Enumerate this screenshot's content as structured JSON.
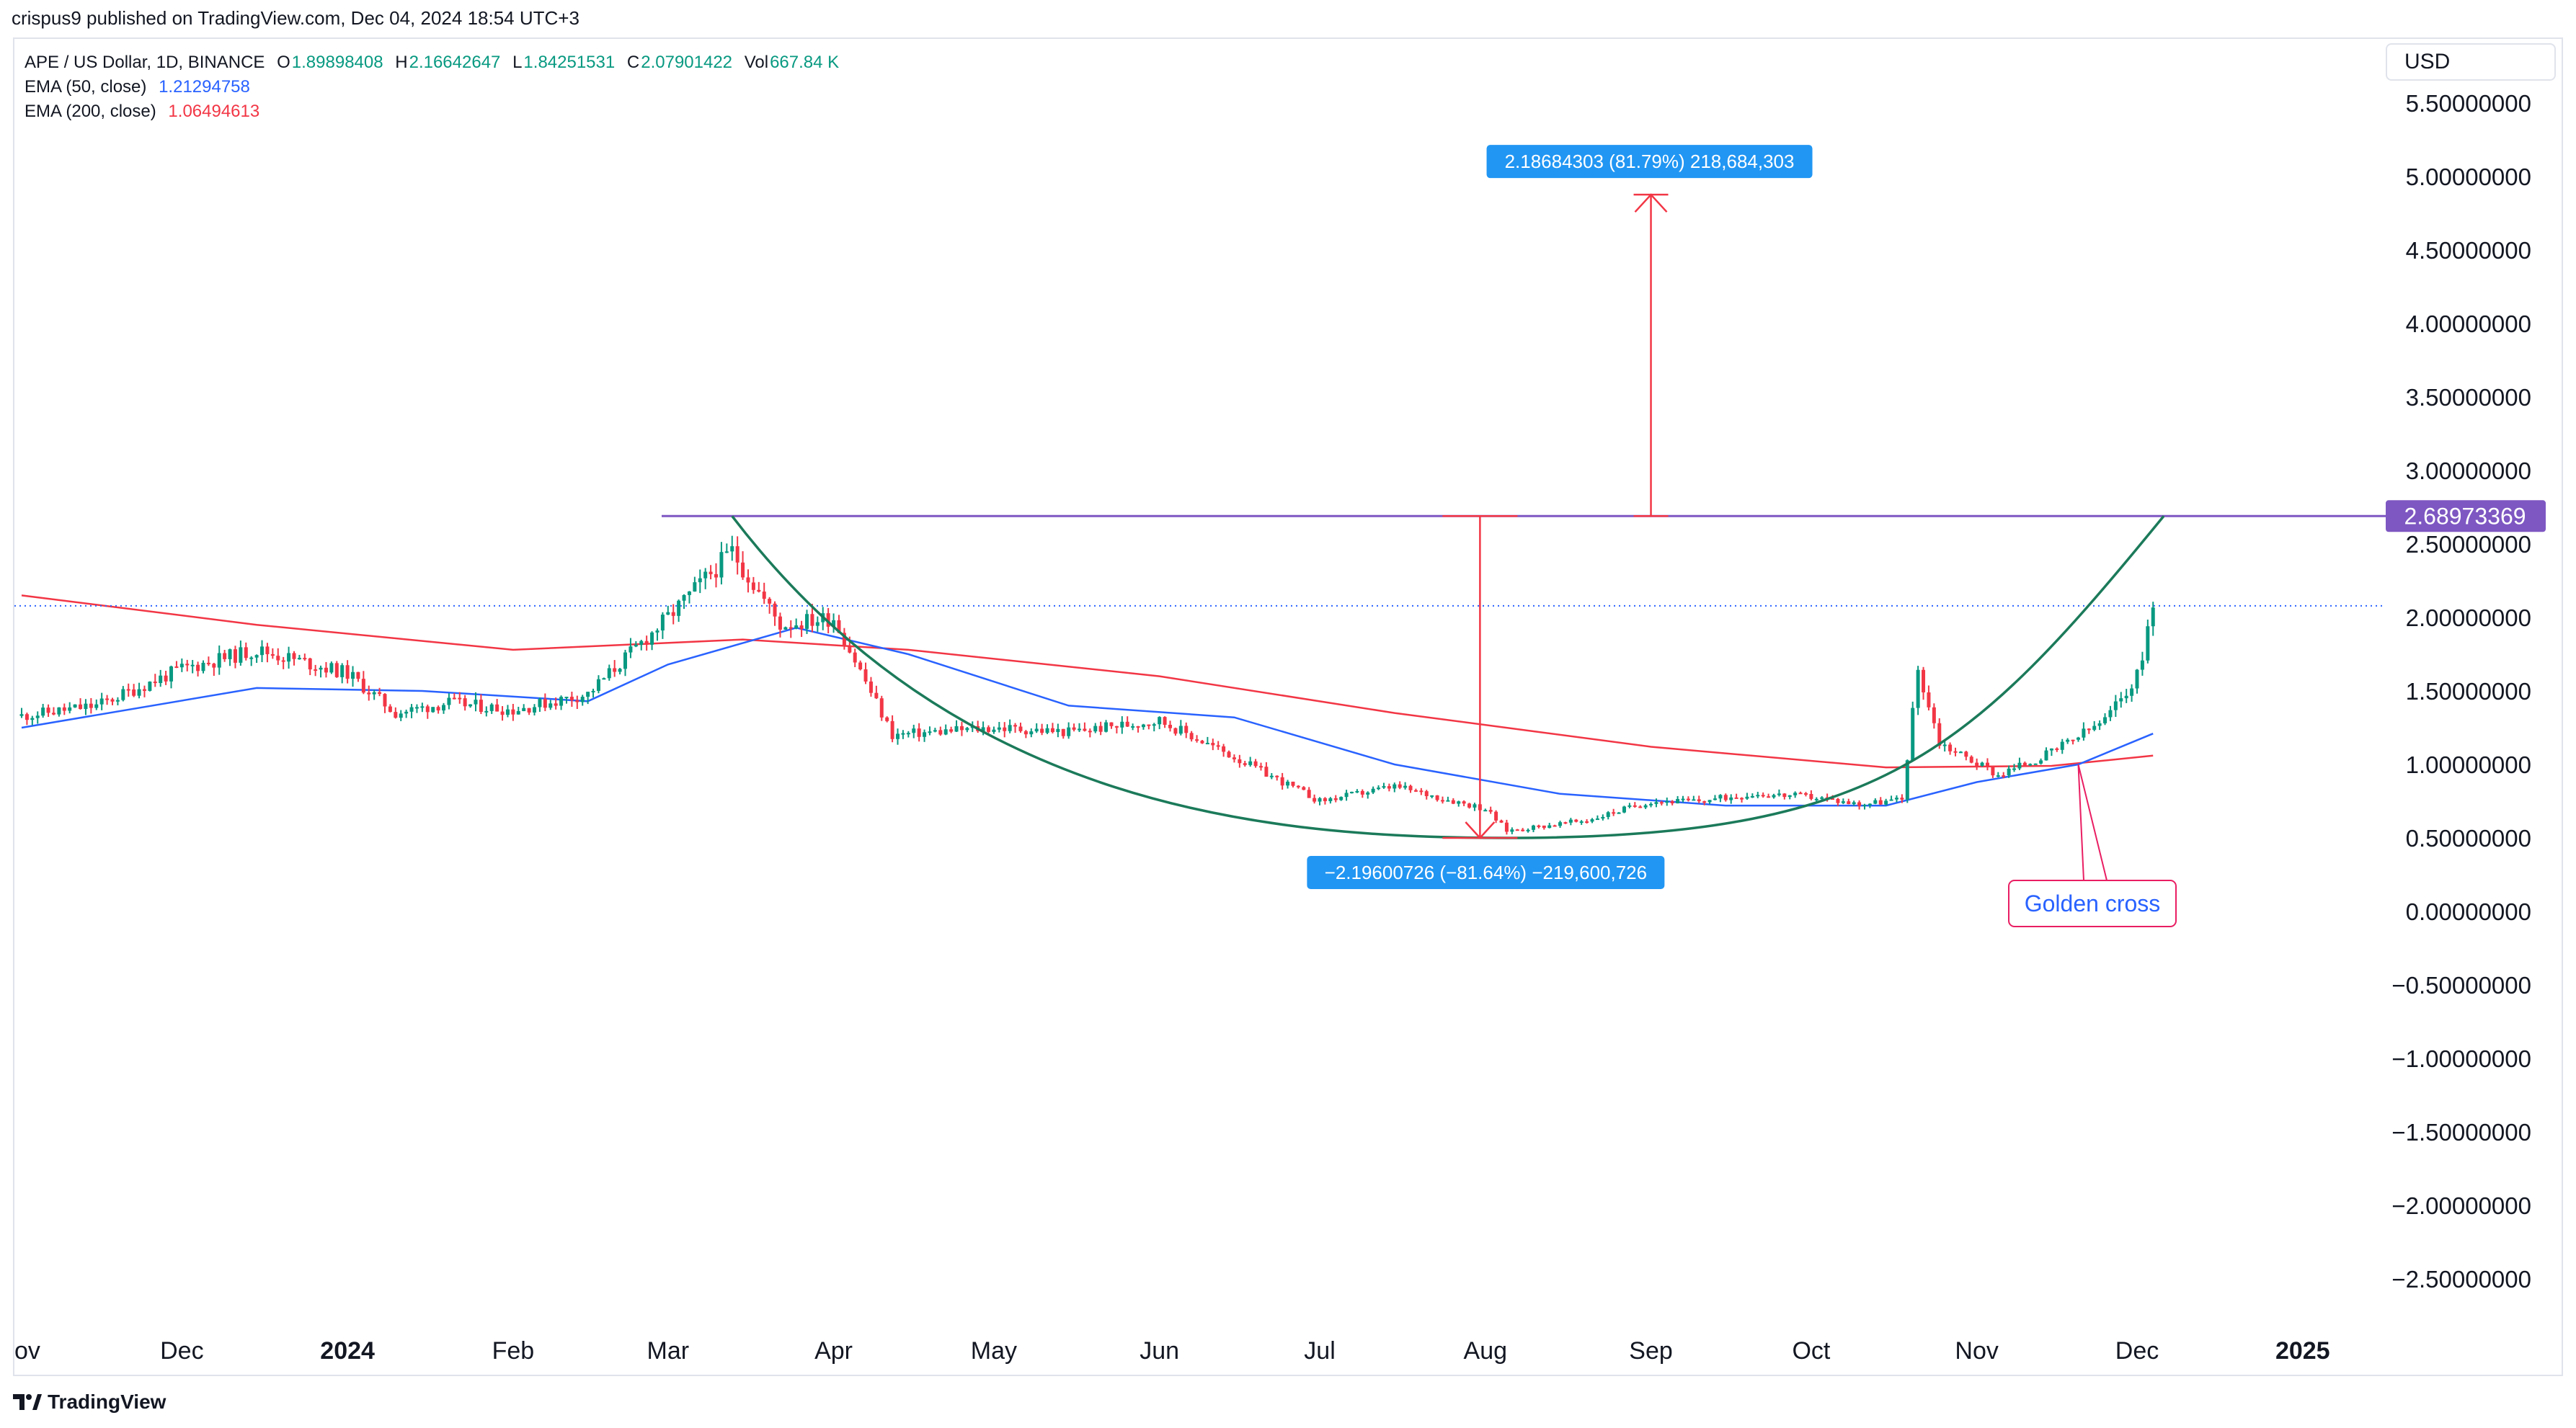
{
  "header": {
    "published": "crispus9 published on TradingView.com, Dec 04, 2024 18:54 UTC+3"
  },
  "legend": {
    "symbol": "APE / US Dollar, 1D, BINANCE",
    "ohlc": [
      {
        "key": "O",
        "value": "1.89898408"
      },
      {
        "key": "H",
        "value": "2.16642647"
      },
      {
        "key": "L",
        "value": "1.84251531"
      },
      {
        "key": "C",
        "value": "2.07901422"
      },
      {
        "key": "Vol",
        "value": "667.84 K"
      }
    ],
    "ema50": {
      "label": "EMA (50, close)",
      "value": "1.21294758"
    },
    "ema200": {
      "label": "EMA (200, close)",
      "value": "1.06494613"
    }
  },
  "currency": "USD",
  "footer": {
    "brand": "TradingView"
  },
  "colors": {
    "up": "#089981",
    "down": "#f23645",
    "ema50": "#2962ff",
    "ema200": "#f23645",
    "resistance": "#7e57c2",
    "cup": "#1b7a5a",
    "measure": "#f23645",
    "annotation_bg": "#2196f3"
  },
  "annotations": {
    "upper_measure": "2.18684303 (81.79%) 218,684,303",
    "lower_measure": "−2.19600726 (−81.64%) −219,600,726",
    "golden_cross": "Golden cross",
    "resistance_label": "2.68973369"
  },
  "chart_data": {
    "type": "candlestick",
    "title": "APE / US Dollar, 1D, BINANCE",
    "xlabel": "",
    "ylabel": "",
    "x_ticks": [
      "ov",
      "Dec",
      "2024",
      "Feb",
      "Mar",
      "Apr",
      "May",
      "Jun",
      "Jul",
      "Aug",
      "Sep",
      "Oct",
      "Nov",
      "Dec",
      "2025"
    ],
    "y_ticks": [
      "5.50000000",
      "5.00000000",
      "4.50000000",
      "4.00000000",
      "3.50000000",
      "3.00000000",
      "2.50000000",
      "2.00000000",
      "1.50000000",
      "1.00000000",
      "0.50000000",
      "0.00000000",
      "−0.50000000",
      "−1.00000000",
      "−1.50000000",
      "−2.00000000",
      "−2.50000000"
    ],
    "ylim": [
      -2.85,
      5.8
    ],
    "grid": false,
    "price_close_approx": [
      {
        "date": "2023-11-01",
        "close": 1.33
      },
      {
        "date": "2023-11-15",
        "close": 1.4
      },
      {
        "date": "2023-12-01",
        "close": 1.65
      },
      {
        "date": "2023-12-15",
        "close": 1.78
      },
      {
        "date": "2024-01-01",
        "close": 1.62
      },
      {
        "date": "2024-01-10",
        "close": 1.35
      },
      {
        "date": "2024-01-20",
        "close": 1.42
      },
      {
        "date": "2024-02-01",
        "close": 1.37
      },
      {
        "date": "2024-02-15",
        "close": 1.48
      },
      {
        "date": "2024-03-01",
        "close": 2.0
      },
      {
        "date": "2024-03-13",
        "close": 2.45
      },
      {
        "date": "2024-03-22",
        "close": 1.95
      },
      {
        "date": "2024-04-01",
        "close": 2.0
      },
      {
        "date": "2024-04-12",
        "close": 1.2
      },
      {
        "date": "2024-05-01",
        "close": 1.25
      },
      {
        "date": "2024-05-15",
        "close": 1.22
      },
      {
        "date": "2024-06-01",
        "close": 1.3
      },
      {
        "date": "2024-06-15",
        "close": 1.05
      },
      {
        "date": "2024-07-01",
        "close": 0.75
      },
      {
        "date": "2024-07-15",
        "close": 0.85
      },
      {
        "date": "2024-08-01",
        "close": 0.7
      },
      {
        "date": "2024-08-05",
        "close": 0.55
      },
      {
        "date": "2024-08-20",
        "close": 0.62
      },
      {
        "date": "2024-09-01",
        "close": 0.75
      },
      {
        "date": "2024-09-10",
        "close": 0.75
      },
      {
        "date": "2024-09-20",
        "close": 0.8
      },
      {
        "date": "2024-10-01",
        "close": 0.78
      },
      {
        "date": "2024-10-10",
        "close": 0.73
      },
      {
        "date": "2024-10-18",
        "close": 0.76
      },
      {
        "date": "2024-10-21",
        "close": 1.65
      },
      {
        "date": "2024-10-25",
        "close": 1.15
      },
      {
        "date": "2024-11-05",
        "close": 0.93
      },
      {
        "date": "2024-11-15",
        "close": 1.08
      },
      {
        "date": "2024-11-25",
        "close": 1.3
      },
      {
        "date": "2024-12-01",
        "close": 1.6
      },
      {
        "date": "2024-12-04",
        "close": 2.08
      }
    ],
    "series": [
      {
        "name": "EMA (50, close)",
        "points": [
          {
            "date": "2023-11-01",
            "value": 1.25
          },
          {
            "date": "2023-12-15",
            "value": 1.52
          },
          {
            "date": "2024-01-15",
            "value": 1.5
          },
          {
            "date": "2024-02-15",
            "value": 1.43
          },
          {
            "date": "2024-03-01",
            "value": 1.68
          },
          {
            "date": "2024-03-25",
            "value": 1.93
          },
          {
            "date": "2024-04-15",
            "value": 1.75
          },
          {
            "date": "2024-05-15",
            "value": 1.4
          },
          {
            "date": "2024-06-15",
            "value": 1.32
          },
          {
            "date": "2024-07-15",
            "value": 1.0
          },
          {
            "date": "2024-08-15",
            "value": 0.8
          },
          {
            "date": "2024-09-15",
            "value": 0.72
          },
          {
            "date": "2024-10-15",
            "value": 0.72
          },
          {
            "date": "2024-11-01",
            "value": 0.88
          },
          {
            "date": "2024-11-20",
            "value": 1.0
          },
          {
            "date": "2024-12-04",
            "value": 1.21
          }
        ]
      },
      {
        "name": "EMA (200, close)",
        "points": [
          {
            "date": "2023-11-01",
            "value": 2.15
          },
          {
            "date": "2023-12-15",
            "value": 1.95
          },
          {
            "date": "2024-02-01",
            "value": 1.78
          },
          {
            "date": "2024-03-15",
            "value": 1.85
          },
          {
            "date": "2024-04-15",
            "value": 1.78
          },
          {
            "date": "2024-06-01",
            "value": 1.6
          },
          {
            "date": "2024-07-15",
            "value": 1.35
          },
          {
            "date": "2024-09-01",
            "value": 1.12
          },
          {
            "date": "2024-10-15",
            "value": 0.98
          },
          {
            "date": "2024-11-15",
            "value": 0.99
          },
          {
            "date": "2024-12-04",
            "value": 1.06
          }
        ]
      }
    ],
    "horizontal_lines": [
      {
        "value": 2.68973369,
        "style": "solid"
      },
      {
        "value": 2.07901422,
        "style": "dotted"
      }
    ]
  }
}
